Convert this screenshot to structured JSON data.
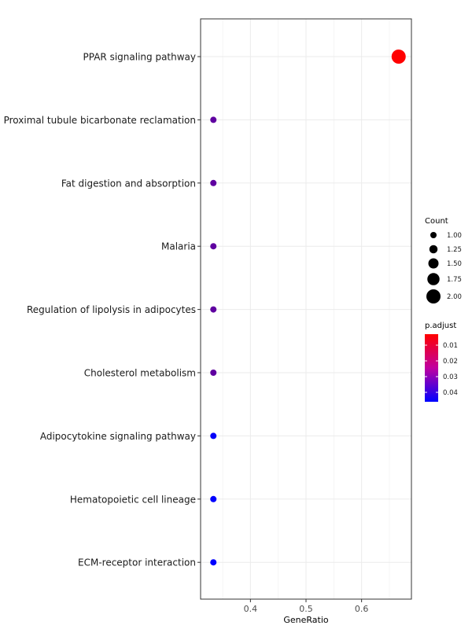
{
  "chart_data": {
    "type": "scatter",
    "title": "",
    "xlabel": "GeneRatio",
    "ylabel": "",
    "xlim": [
      0.3103,
      0.6897
    ],
    "xticks": [
      0.4,
      0.5,
      0.6
    ],
    "xtick_labels": [
      "0.4",
      "0.5",
      "0.6"
    ],
    "grid": true,
    "categories": [
      "PPAR signaling pathway",
      "Proximal tubule bicarbonate reclamation",
      "Fat digestion and absorption",
      "Malaria",
      "Regulation of lipolysis in adipocytes",
      "Cholesterol metabolism",
      "Adipocytokine signaling pathway",
      "Hematopoietic cell lineage",
      "ECM-receptor interaction"
    ],
    "points": [
      {
        "term": "PPAR signaling pathway",
        "gene_ratio": 0.6667,
        "count": 2,
        "p_adjust": 0.003
      },
      {
        "term": "Proximal tubule bicarbonate reclamation",
        "gene_ratio": 0.3333,
        "count": 1,
        "p_adjust": 0.03
      },
      {
        "term": "Fat digestion and absorption",
        "gene_ratio": 0.3333,
        "count": 1,
        "p_adjust": 0.03
      },
      {
        "term": "Malaria",
        "gene_ratio": 0.3333,
        "count": 1,
        "p_adjust": 0.03
      },
      {
        "term": "Regulation of lipolysis in adipocytes",
        "gene_ratio": 0.3333,
        "count": 1,
        "p_adjust": 0.03
      },
      {
        "term": "Cholesterol metabolism",
        "gene_ratio": 0.3333,
        "count": 1,
        "p_adjust": 0.03
      },
      {
        "term": "Adipocytokine signaling pathway",
        "gene_ratio": 0.3333,
        "count": 1,
        "p_adjust": 0.045
      },
      {
        "term": "Hematopoietic cell lineage",
        "gene_ratio": 0.3333,
        "count": 1,
        "p_adjust": 0.046
      },
      {
        "term": "ECM-receptor interaction",
        "gene_ratio": 0.3333,
        "count": 1,
        "p_adjust": 0.046
      }
    ],
    "size_legend": {
      "title": "Count",
      "values": [
        1.0,
        1.25,
        1.5,
        1.75,
        2.0
      ],
      "labels": [
        "1.00",
        "1.25",
        "1.50",
        "1.75",
        "2.00"
      ]
    },
    "color_legend": {
      "title": "p.adjust",
      "range": [
        0.003,
        0.046
      ],
      "ticks": [
        0.01,
        0.02,
        0.03,
        0.04
      ],
      "labels": [
        "0.01",
        "0.02",
        "0.03",
        "0.04"
      ],
      "low_color": "#ff0000",
      "high_color": "#0000ff"
    },
    "colors": {
      "panel_border": "#333333",
      "grid_line": "#ebebeb",
      "tick_mark": "#333333"
    }
  }
}
